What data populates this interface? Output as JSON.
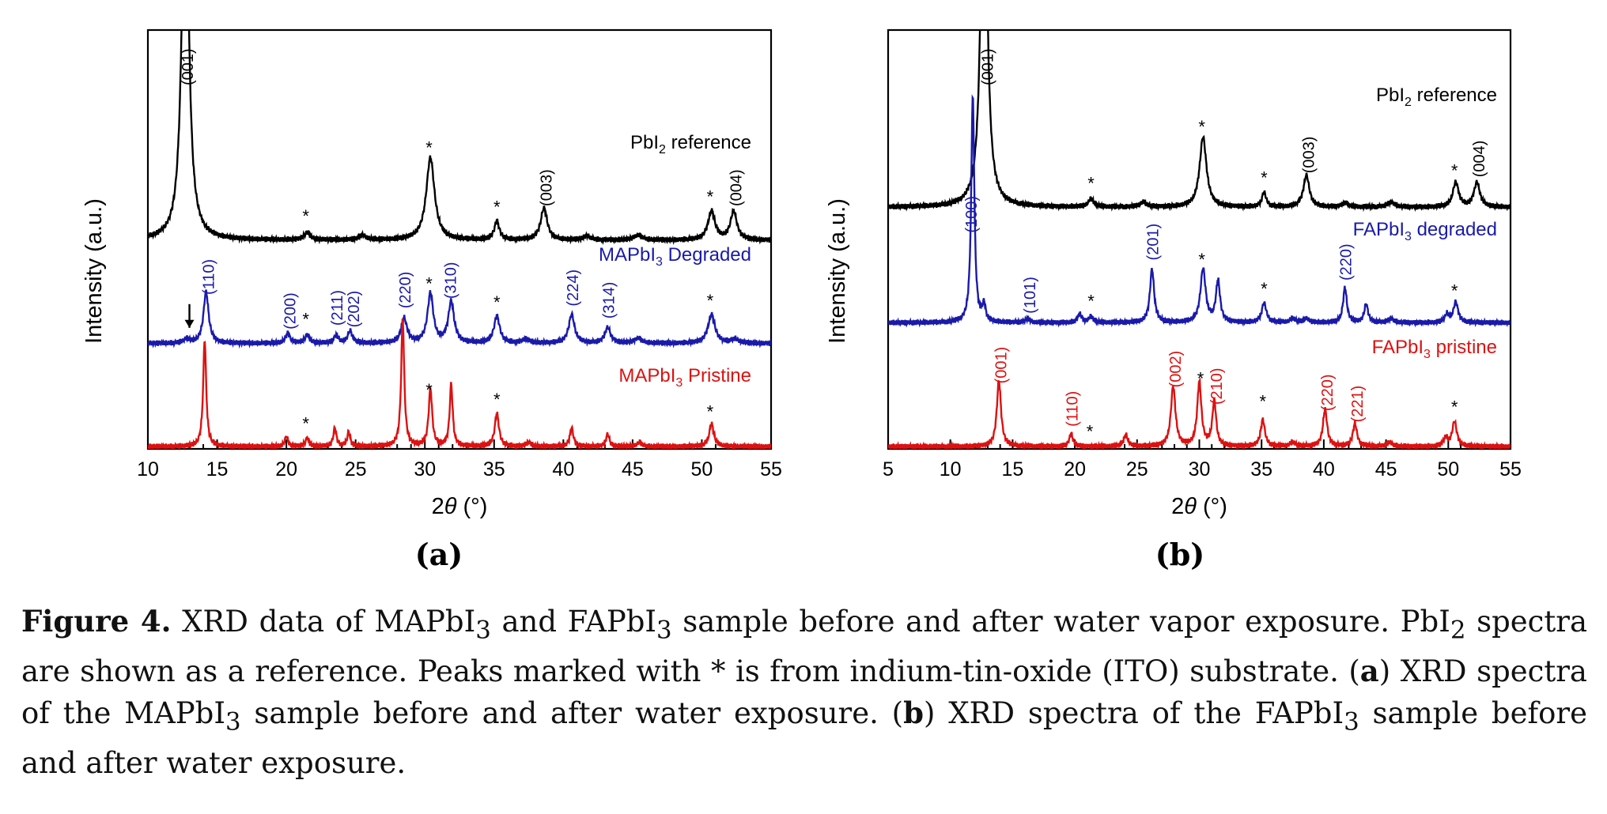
{
  "chart_data": [
    {
      "panel": "(a)",
      "type": "line",
      "xlabel_pre": "2",
      "xlabel_theta": "θ",
      "xlabel_post": " (°)",
      "ylabel": "Intensity (a.u.)",
      "xlim": [
        10,
        55
      ],
      "xticks": [
        10,
        15,
        20,
        25,
        30,
        35,
        40,
        45,
        50,
        55
      ],
      "grid": false,
      "series": [
        {
          "name": "PbI2 reference",
          "label_main": "PbI",
          "label_sub": "2",
          "label_rest": " reference",
          "color": "#000000",
          "baseline": 0.5,
          "peaks": [
            [
              12.7,
              1.0,
              0.28
            ],
            [
              21.5,
              0.018,
              0.25
            ],
            [
              25.5,
              0.011,
              0.3
            ],
            [
              30.4,
              0.2,
              0.36
            ],
            [
              35.2,
              0.045,
              0.22
            ],
            [
              38.6,
              0.078,
              0.28
            ],
            [
              41.7,
              0.01,
              0.3
            ],
            [
              45.4,
              0.012,
              0.35
            ],
            [
              50.7,
              0.07,
              0.3
            ],
            [
              52.3,
              0.07,
              0.28
            ]
          ],
          "peak_labels": [
            {
              "x": 12.8,
              "text": "(001)"
            },
            {
              "x": 38.7,
              "text": "(003)"
            },
            {
              "x": 52.4,
              "text": "(004)"
            }
          ],
          "stars": [
            21.4,
            30.3,
            35.2,
            50.6
          ]
        },
        {
          "name": "MAPbI3 Degraded",
          "label_main": "MAPbI",
          "label_sub": "3",
          "label_rest": " Degraded",
          "color": "#1a1aaa",
          "baseline": 0.25,
          "peaks": [
            [
              12.8,
              0.01,
              0.25
            ],
            [
              14.2,
              0.125,
              0.22
            ],
            [
              20.1,
              0.023,
              0.2
            ],
            [
              21.5,
              0.02,
              0.2
            ],
            [
              23.6,
              0.018,
              0.2
            ],
            [
              24.6,
              0.03,
              0.2
            ],
            [
              28.5,
              0.06,
              0.25
            ],
            [
              30.4,
              0.12,
              0.25
            ],
            [
              31.9,
              0.1,
              0.25
            ],
            [
              35.2,
              0.065,
              0.25
            ],
            [
              37.3,
              0.01,
              0.3
            ],
            [
              40.6,
              0.07,
              0.25
            ],
            [
              43.2,
              0.038,
              0.25
            ],
            [
              45.4,
              0.012,
              0.3
            ],
            [
              50.7,
              0.07,
              0.3
            ],
            [
              52.4,
              0.01,
              0.3
            ]
          ],
          "peak_labels": [
            {
              "x": 14.3,
              "text": "(110)"
            },
            {
              "x": 20.2,
              "text": "(200)"
            },
            {
              "x": 23.6,
              "text": "(211)"
            },
            {
              "x": 24.8,
              "text": "(202)"
            },
            {
              "x": 28.5,
              "text": "(220)"
            },
            {
              "x": 31.8,
              "text": "(310)"
            },
            {
              "x": 40.6,
              "text": "(224)"
            },
            {
              "x": 43.2,
              "text": "(314)"
            }
          ],
          "stars": [
            21.4,
            30.3,
            35.2,
            50.6
          ],
          "arrow_x": 13.0
        },
        {
          "name": "MAPbI3 Pristine",
          "label_main": "MAPbI",
          "label_sub": "3",
          "label_rest": " Pristine",
          "color": "#dd1111",
          "baseline": 0.0,
          "peaks": [
            [
              14.1,
              0.26,
              0.13
            ],
            [
              20.0,
              0.025,
              0.13
            ],
            [
              21.5,
              0.02,
              0.15
            ],
            [
              23.5,
              0.045,
              0.13
            ],
            [
              24.5,
              0.035,
              0.13
            ],
            [
              28.4,
              0.31,
              0.13
            ],
            [
              30.4,
              0.14,
              0.15
            ],
            [
              31.9,
              0.15,
              0.13
            ],
            [
              35.2,
              0.08,
              0.18
            ],
            [
              37.5,
              0.01,
              0.2
            ],
            [
              40.6,
              0.045,
              0.15
            ],
            [
              43.2,
              0.03,
              0.15
            ],
            [
              45.5,
              0.01,
              0.2
            ],
            [
              50.7,
              0.055,
              0.2
            ]
          ],
          "peak_labels": [],
          "stars": [
            21.4,
            30.3,
            35.2,
            50.6
          ]
        }
      ]
    },
    {
      "panel": "(b)",
      "type": "line",
      "xlabel_pre": "2",
      "xlabel_theta": "θ",
      "xlabel_post": " (°)",
      "ylabel": "Intensity (a.u.)",
      "xlim": [
        5,
        55
      ],
      "xticks": [
        5,
        10,
        15,
        20,
        25,
        30,
        35,
        40,
        45,
        50,
        55
      ],
      "grid": false,
      "series": [
        {
          "name": "PbI2 reference",
          "label_main": "PbI",
          "label_sub": "2",
          "label_rest": " reference",
          "color": "#000000",
          "baseline": 0.58,
          "peaks": [
            [
              12.7,
              1.0,
              0.28
            ],
            [
              21.3,
              0.02,
              0.25
            ],
            [
              25.5,
              0.012,
              0.3
            ],
            [
              30.3,
              0.17,
              0.33
            ],
            [
              35.2,
              0.036,
              0.2
            ],
            [
              38.6,
              0.078,
              0.28
            ],
            [
              41.7,
              0.01,
              0.3
            ],
            [
              45.4,
              0.012,
              0.35
            ],
            [
              50.6,
              0.06,
              0.28
            ],
            [
              52.3,
              0.06,
              0.28
            ]
          ],
          "peak_labels": [
            {
              "x": 12.9,
              "text": "(001)"
            },
            {
              "x": 38.7,
              "text": "(003)"
            },
            {
              "x": 52.4,
              "text": "(004)"
            }
          ],
          "stars": [
            21.3,
            30.2,
            35.2,
            50.5
          ]
        },
        {
          "name": "FAPbI3 degraded",
          "label_main": "FAPbI",
          "label_sub": "3",
          "label_rest": " degraded",
          "color": "#1a1aaa",
          "baseline": 0.3,
          "peaks": [
            [
              11.8,
              0.55,
              0.15
            ],
            [
              12.7,
              0.04,
              0.15
            ],
            [
              16.2,
              0.01,
              0.2
            ],
            [
              20.4,
              0.02,
              0.2
            ],
            [
              21.3,
              0.015,
              0.2
            ],
            [
              26.2,
              0.13,
              0.2
            ],
            [
              30.3,
              0.13,
              0.25
            ],
            [
              31.5,
              0.1,
              0.2
            ],
            [
              35.2,
              0.048,
              0.22
            ],
            [
              37.5,
              0.01,
              0.25
            ],
            [
              38.6,
              0.01,
              0.25
            ],
            [
              41.7,
              0.085,
              0.18
            ],
            [
              43.4,
              0.045,
              0.18
            ],
            [
              45.4,
              0.01,
              0.25
            ],
            [
              49.9,
              0.02,
              0.2
            ],
            [
              50.6,
              0.05,
              0.22
            ]
          ],
          "peak_labels": [
            {
              "x": 11.6,
              "text": "(100)"
            },
            {
              "x": 16.3,
              "text": "(101)"
            },
            {
              "x": 26.2,
              "text": "(201)"
            },
            {
              "x": 41.7,
              "text": "(220)"
            }
          ],
          "stars": [
            21.3,
            30.2,
            35.2,
            50.5
          ]
        },
        {
          "name": "FAPbI3 pristine",
          "label_main": "FAPbI",
          "label_sub": "3",
          "label_rest": " pristine",
          "color": "#dd1111",
          "baseline": 0.0,
          "peaks": [
            [
              13.9,
              0.16,
              0.2
            ],
            [
              19.7,
              0.03,
              0.18
            ],
            [
              24.1,
              0.028,
              0.2
            ],
            [
              27.9,
              0.145,
              0.22
            ],
            [
              30.0,
              0.155,
              0.2
            ],
            [
              31.2,
              0.11,
              0.18
            ],
            [
              35.1,
              0.065,
              0.2
            ],
            [
              37.5,
              0.01,
              0.25
            ],
            [
              40.1,
              0.09,
              0.2
            ],
            [
              42.5,
              0.055,
              0.2
            ],
            [
              45.3,
              0.01,
              0.25
            ],
            [
              49.8,
              0.02,
              0.2
            ],
            [
              50.5,
              0.06,
              0.22
            ]
          ],
          "peak_labels": [
            {
              "x": 14.0,
              "text": "(001)"
            },
            {
              "x": 19.7,
              "text": "(110)"
            },
            {
              "x": 28.0,
              "text": "(002)"
            },
            {
              "x": 31.3,
              "text": "(210)"
            },
            {
              "x": 40.2,
              "text": "(220)"
            },
            {
              "x": 42.6,
              "text": "(221)"
            }
          ],
          "stars": [
            21.2,
            30.1,
            35.1,
            50.5
          ]
        }
      ]
    }
  ],
  "caption": {
    "lead": "Figure 4.",
    "t1": " XRD data of MAPbI",
    "s1": "3",
    "t2": " and FAPbI",
    "s2": "3",
    "t3": " sample before and after water vapor exposure. PbI",
    "s3": "2",
    "t4": " spectra are shown as a reference.  Peaks marked with * is from indium-tin-oxide (ITO) substrate.  (",
    "b1": "a",
    "t5": ") XRD spectra of the MAPbI",
    "s4": "3",
    "t6": " sample before and after water exposure. (",
    "b2": "b",
    "t7": ") XRD spectra of the FAPbI",
    "s5": "3",
    "t8": " sample before and after water exposure."
  }
}
